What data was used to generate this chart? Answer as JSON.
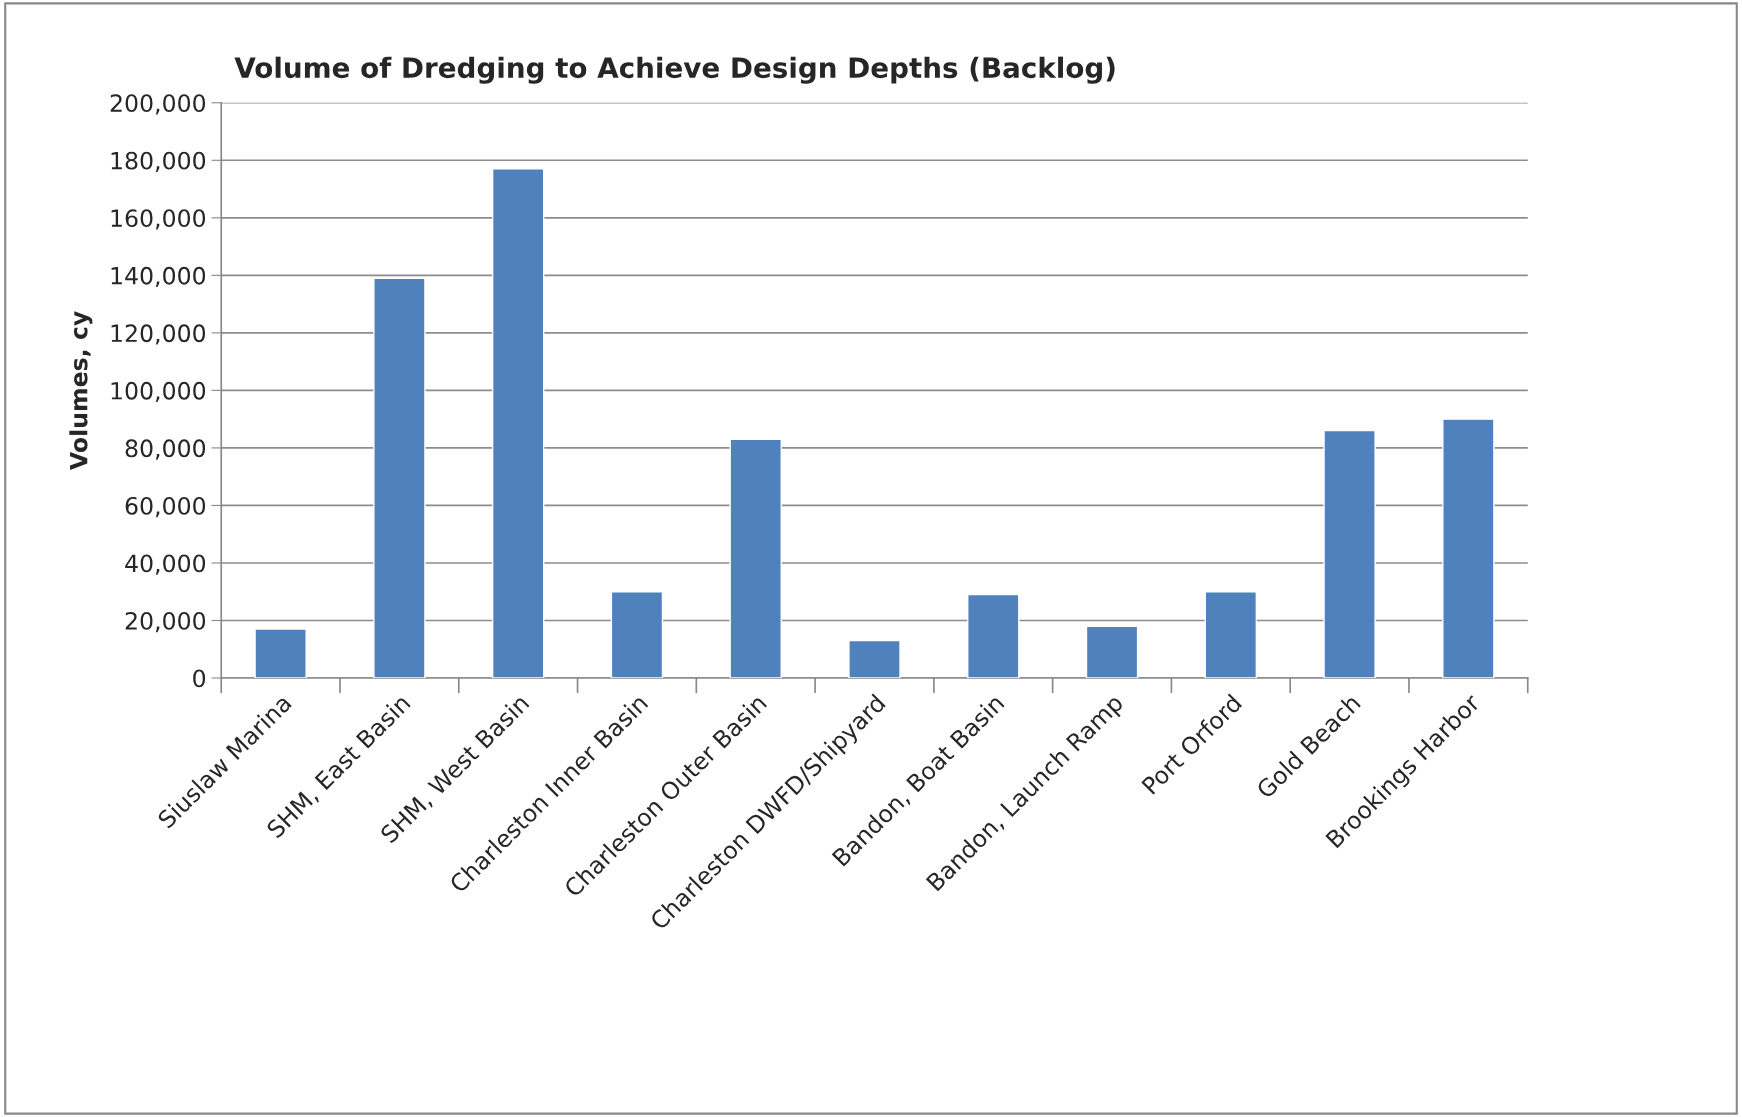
{
  "chart_data": {
    "type": "bar",
    "title": "Volume of Dredging to Achieve Design Depths (Backlog)",
    "ylabel": "Volumes, cy",
    "categories": [
      "Siuslaw Marina",
      "SHM, East Basin",
      "SHM, West Basin",
      "Charleston Inner Basin",
      "Charleston Outer Basin",
      "Charleston DWFD/Shipyard",
      "Bandon, Boat Basin",
      "Bandon, Launch Ramp",
      "Port Orford",
      "Gold Beach",
      "Brookings Harbor"
    ],
    "values": [
      17000,
      139000,
      177000,
      30000,
      83000,
      13000,
      29000,
      18000,
      30000,
      86000,
      90000
    ],
    "color": "#4f81bd",
    "ylim": [
      0,
      200000
    ],
    "yticks": [
      {
        "value": 0,
        "label": "0"
      },
      {
        "value": 20000,
        "label": "20,000"
      },
      {
        "value": 40000,
        "label": "40,000"
      },
      {
        "value": 60000,
        "label": "60,000"
      },
      {
        "value": 80000,
        "label": "80,000"
      },
      {
        "value": 100000,
        "label": "100,000"
      },
      {
        "value": 120000,
        "label": "120,000"
      },
      {
        "value": 140000,
        "label": "140,000"
      },
      {
        "value": 160000,
        "label": "160,000"
      },
      {
        "value": 180000,
        "label": "180,000"
      },
      {
        "value": 200000,
        "label": "200,000"
      }
    ],
    "grid": "y",
    "legend": false
  }
}
